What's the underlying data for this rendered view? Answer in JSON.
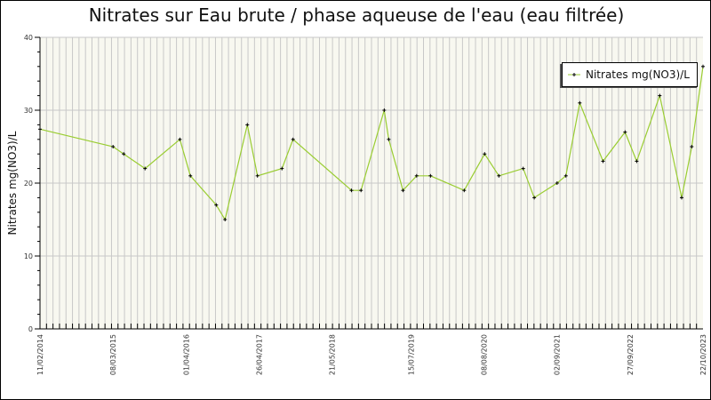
{
  "chart_data": {
    "type": "line",
    "title": "Nitrates sur Eau brute / phase aqueuse de l'eau (eau filtrée)",
    "xlabel": "",
    "ylabel": "Nitrates mg(NO3)/L",
    "xlim": [
      "2014-02-11",
      "2023-10-22"
    ],
    "ylim": [
      0,
      40
    ],
    "yticks": [
      0,
      10,
      20,
      30,
      40
    ],
    "xticks": [
      "11/02/2014",
      "08/03/2015",
      "01/04/2016",
      "26/04/2017",
      "21/05/2018",
      "15/07/2019",
      "08/08/2020",
      "02/09/2021",
      "27/09/2022",
      "22/10/2023"
    ],
    "grid": true,
    "legend_position": "top-right",
    "series_color": "#9acd32",
    "marker_color": "#000000",
    "background_color": "#f8f8f0",
    "series": [
      {
        "name": "Nitrates mg(NO3)/L",
        "points": [
          [
            "2014-02-11",
            27.4
          ],
          [
            "2015-03-08",
            25
          ],
          [
            "2015-05-04",
            24
          ],
          [
            "2015-08-26",
            22
          ],
          [
            "2016-02-28",
            26
          ],
          [
            "2016-04-24",
            21
          ],
          [
            "2016-09-09",
            17
          ],
          [
            "2016-10-26",
            15
          ],
          [
            "2017-02-22",
            28
          ],
          [
            "2017-04-17",
            21
          ],
          [
            "2017-08-26",
            22
          ],
          [
            "2017-10-24",
            26
          ],
          [
            "2018-09-01",
            19
          ],
          [
            "2018-10-22",
            19
          ],
          [
            "2019-02-23",
            30
          ],
          [
            "2019-03-19",
            26
          ],
          [
            "2019-06-03",
            19
          ],
          [
            "2019-08-15",
            21
          ],
          [
            "2019-10-28",
            21
          ],
          [
            "2020-04-25",
            19
          ],
          [
            "2020-08-12",
            24
          ],
          [
            "2020-10-27",
            21
          ],
          [
            "2021-03-06",
            22
          ],
          [
            "2021-05-04",
            18
          ],
          [
            "2021-09-03",
            20
          ],
          [
            "2021-10-20",
            21
          ],
          [
            "2022-01-02",
            31
          ],
          [
            "2022-05-06",
            23
          ],
          [
            "2022-09-01",
            27
          ],
          [
            "2022-11-02",
            23
          ],
          [
            "2023-03-05",
            32
          ],
          [
            "2023-06-30",
            18
          ],
          [
            "2023-08-23",
            25
          ],
          [
            "2023-10-22",
            36
          ]
        ]
      }
    ]
  }
}
